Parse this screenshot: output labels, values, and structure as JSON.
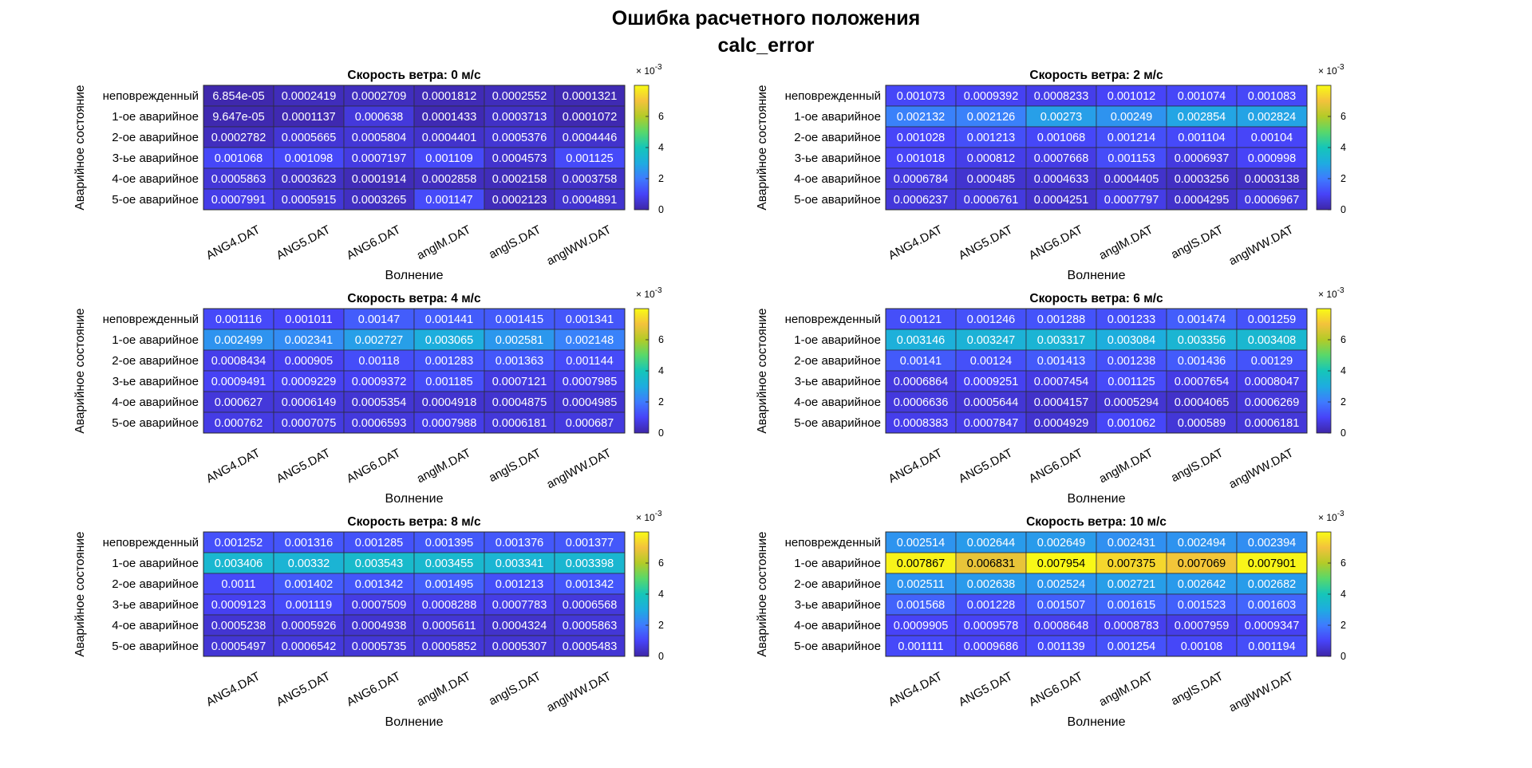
{
  "title_line1": "Ошибка расчетного положения",
  "title_line2": "calc_error",
  "colormap": [
    "#3e26a8",
    "#4743f8",
    "#3e7bfe",
    "#1eace0",
    "#15c6b9",
    "#58d86b",
    "#b3cb28",
    "#f3c23c",
    "#f9fb15"
  ],
  "chart_data": [
    {
      "type": "heatmap",
      "title": "Скорость ветра: 0 м/с",
      "xlabel": "Волнение",
      "ylabel": "Аварийное состояние",
      "x": [
        "ANG4.DAT",
        "ANG5.DAT",
        "ANG6.DAT",
        "anglM.DAT",
        "anglS.DAT",
        "anglWW.DAT"
      ],
      "y": [
        "неповрежденный",
        "1-ое аварийное",
        "2-ое аварийное",
        "3-ье аварийное",
        "4-ое аварийное",
        "5-ое аварийное"
      ],
      "labels": [
        [
          "6.854e-05",
          "0.0002419",
          "0.0002709",
          "0.0001812",
          "0.0002552",
          "0.0001321"
        ],
        [
          "9.647e-05",
          "0.0001137",
          "0.000638",
          "0.0001433",
          "0.0003713",
          "0.0001072"
        ],
        [
          "0.0002782",
          "0.0005665",
          "0.0005804",
          "0.0004401",
          "0.0005376",
          "0.0004446"
        ],
        [
          "0.001068",
          "0.001098",
          "0.0007197",
          "0.001109",
          "0.0004573",
          "0.001125"
        ],
        [
          "0.0005863",
          "0.0003623",
          "0.0001914",
          "0.0002858",
          "0.0002158",
          "0.0003758"
        ],
        [
          "0.0007991",
          "0.0005915",
          "0.0003265",
          "0.001147",
          "0.0002123",
          "0.0004891"
        ]
      ],
      "values": [
        [
          6.854e-05,
          0.0002419,
          0.0002709,
          0.0001812,
          0.0002552,
          0.0001321
        ],
        [
          9.647e-05,
          0.0001137,
          0.000638,
          0.0001433,
          0.0003713,
          0.0001072
        ],
        [
          0.0002782,
          0.0005665,
          0.0005804,
          0.0004401,
          0.0005376,
          0.0004446
        ],
        [
          0.001068,
          0.001098,
          0.0007197,
          0.001109,
          0.0004573,
          0.001125
        ],
        [
          0.0005863,
          0.0003623,
          0.0001914,
          0.0002858,
          0.0002158,
          0.0003758
        ],
        [
          0.0007991,
          0.0005915,
          0.0003265,
          0.001147,
          0.0002123,
          0.0004891
        ]
      ],
      "clim": [
        0,
        0.008
      ],
      "colorbar": {
        "ticks": [
          "0",
          "2",
          "4",
          "6"
        ],
        "exponent": "× 10^-3"
      }
    },
    {
      "type": "heatmap",
      "title": "Скорость ветра: 2 м/с",
      "xlabel": "Волнение",
      "ylabel": "Аварийное состояние",
      "x": [
        "ANG4.DAT",
        "ANG5.DAT",
        "ANG6.DAT",
        "anglM.DAT",
        "anglS.DAT",
        "anglWW.DAT"
      ],
      "y": [
        "неповрежденный",
        "1-ое аварийное",
        "2-ое аварийное",
        "3-ье аварийное",
        "4-ое аварийное",
        "5-ое аварийное"
      ],
      "labels": [
        [
          "0.001073",
          "0.0009392",
          "0.0008233",
          "0.001012",
          "0.001074",
          "0.001083"
        ],
        [
          "0.002132",
          "0.002126",
          "0.00273",
          "0.00249",
          "0.002854",
          "0.002824"
        ],
        [
          "0.001028",
          "0.001213",
          "0.001068",
          "0.001214",
          "0.001104",
          "0.00104"
        ],
        [
          "0.001018",
          "0.000812",
          "0.0007668",
          "0.001153",
          "0.0006937",
          "0.000998"
        ],
        [
          "0.0006784",
          "0.000485",
          "0.0004633",
          "0.0004405",
          "0.0003256",
          "0.0003138"
        ],
        [
          "0.0006237",
          "0.0006761",
          "0.0004251",
          "0.0007797",
          "0.0004295",
          "0.0006967"
        ]
      ],
      "values": [
        [
          0.001073,
          0.0009392,
          0.0008233,
          0.001012,
          0.001074,
          0.001083
        ],
        [
          0.002132,
          0.002126,
          0.00273,
          0.00249,
          0.002854,
          0.002824
        ],
        [
          0.001028,
          0.001213,
          0.001068,
          0.001214,
          0.001104,
          0.00104
        ],
        [
          0.001018,
          0.000812,
          0.0007668,
          0.001153,
          0.0006937,
          0.000998
        ],
        [
          0.0006784,
          0.000485,
          0.0004633,
          0.0004405,
          0.0003256,
          0.0003138
        ],
        [
          0.0006237,
          0.0006761,
          0.0004251,
          0.0007797,
          0.0004295,
          0.0006967
        ]
      ],
      "clim": [
        0,
        0.008
      ],
      "colorbar": {
        "ticks": [
          "0",
          "2",
          "4",
          "6"
        ],
        "exponent": "× 10^-3"
      }
    },
    {
      "type": "heatmap",
      "title": "Скорость ветра: 4 м/с",
      "xlabel": "Волнение",
      "ylabel": "Аварийное состояние",
      "x": [
        "ANG4.DAT",
        "ANG5.DAT",
        "ANG6.DAT",
        "anglM.DAT",
        "anglS.DAT",
        "anglWW.DAT"
      ],
      "y": [
        "неповрежденный",
        "1-ое аварийное",
        "2-ое аварийное",
        "3-ье аварийное",
        "4-ое аварийное",
        "5-ое аварийное"
      ],
      "labels": [
        [
          "0.001116",
          "0.001011",
          "0.00147",
          "0.001441",
          "0.001415",
          "0.001341"
        ],
        [
          "0.002499",
          "0.002341",
          "0.002727",
          "0.003065",
          "0.002581",
          "0.002148"
        ],
        [
          "0.0008434",
          "0.000905",
          "0.00118",
          "0.001283",
          "0.001363",
          "0.001144"
        ],
        [
          "0.0009491",
          "0.0009229",
          "0.0009372",
          "0.001185",
          "0.0007121",
          "0.0007985"
        ],
        [
          "0.000627",
          "0.0006149",
          "0.0005354",
          "0.0004918",
          "0.0004875",
          "0.0004985"
        ],
        [
          "0.000762",
          "0.0007075",
          "0.0006593",
          "0.0007988",
          "0.0006181",
          "0.000687"
        ]
      ],
      "values": [
        [
          0.001116,
          0.001011,
          0.00147,
          0.001441,
          0.001415,
          0.001341
        ],
        [
          0.002499,
          0.002341,
          0.002727,
          0.003065,
          0.002581,
          0.002148
        ],
        [
          0.0008434,
          0.000905,
          0.00118,
          0.001283,
          0.001363,
          0.001144
        ],
        [
          0.0009491,
          0.0009229,
          0.0009372,
          0.001185,
          0.0007121,
          0.0007985
        ],
        [
          0.000627,
          0.0006149,
          0.0005354,
          0.0004918,
          0.0004875,
          0.0004985
        ],
        [
          0.000762,
          0.0007075,
          0.0006593,
          0.0007988,
          0.0006181,
          0.000687
        ]
      ],
      "clim": [
        0,
        0.008
      ],
      "colorbar": {
        "ticks": [
          "0",
          "2",
          "4",
          "6"
        ],
        "exponent": "× 10^-3"
      }
    },
    {
      "type": "heatmap",
      "title": "Скорость ветра: 6 м/с",
      "xlabel": "Волнение",
      "ylabel": "Аварийное состояние",
      "x": [
        "ANG4.DAT",
        "ANG5.DAT",
        "ANG6.DAT",
        "anglM.DAT",
        "anglS.DAT",
        "anglWW.DAT"
      ],
      "y": [
        "неповрежденный",
        "1-ое аварийное",
        "2-ое аварийное",
        "3-ье аварийное",
        "4-ое аварийное",
        "5-ое аварийное"
      ],
      "labels": [
        [
          "0.00121",
          "0.001246",
          "0.001288",
          "0.001233",
          "0.001474",
          "0.001259"
        ],
        [
          "0.003146",
          "0.003247",
          "0.003317",
          "0.003084",
          "0.003356",
          "0.003408"
        ],
        [
          "0.00141",
          "0.00124",
          "0.001413",
          "0.001238",
          "0.001436",
          "0.00129"
        ],
        [
          "0.0006864",
          "0.0009251",
          "0.0007454",
          "0.001125",
          "0.0007654",
          "0.0008047"
        ],
        [
          "0.0006636",
          "0.0005644",
          "0.0004157",
          "0.0005294",
          "0.0004065",
          "0.0006269"
        ],
        [
          "0.0008383",
          "0.0007847",
          "0.0004929",
          "0.001062",
          "0.000589",
          "0.0006181"
        ]
      ],
      "values": [
        [
          0.00121,
          0.001246,
          0.001288,
          0.001233,
          0.001474,
          0.001259
        ],
        [
          0.003146,
          0.003247,
          0.003317,
          0.003084,
          0.003356,
          0.003408
        ],
        [
          0.00141,
          0.00124,
          0.001413,
          0.001238,
          0.001436,
          0.00129
        ],
        [
          0.0006864,
          0.0009251,
          0.0007454,
          0.001125,
          0.0007654,
          0.0008047
        ],
        [
          0.0006636,
          0.0005644,
          0.0004157,
          0.0005294,
          0.0004065,
          0.0006269
        ],
        [
          0.0008383,
          0.0007847,
          0.0004929,
          0.001062,
          0.000589,
          0.0006181
        ]
      ],
      "clim": [
        0,
        0.008
      ],
      "colorbar": {
        "ticks": [
          "0",
          "2",
          "4",
          "6"
        ],
        "exponent": "× 10^-3"
      }
    },
    {
      "type": "heatmap",
      "title": "Скорость ветра: 8 м/с",
      "xlabel": "Волнение",
      "ylabel": "Аварийное состояние",
      "x": [
        "ANG4.DAT",
        "ANG5.DAT",
        "ANG6.DAT",
        "anglM.DAT",
        "anglS.DAT",
        "anglWW.DAT"
      ],
      "y": [
        "неповрежденный",
        "1-ое аварийное",
        "2-ое аварийное",
        "3-ье аварийное",
        "4-ое аварийное",
        "5-ое аварийное"
      ],
      "labels": [
        [
          "0.001252",
          "0.001316",
          "0.001285",
          "0.001395",
          "0.001376",
          "0.001377"
        ],
        [
          "0.003406",
          "0.00332",
          "0.003543",
          "0.003455",
          "0.003341",
          "0.003398"
        ],
        [
          "0.0011",
          "0.001402",
          "0.001342",
          "0.001495",
          "0.001213",
          "0.001342"
        ],
        [
          "0.0009123",
          "0.001119",
          "0.0007509",
          "0.0008288",
          "0.0007783",
          "0.0006568"
        ],
        [
          "0.0005238",
          "0.0005926",
          "0.0004938",
          "0.0005611",
          "0.0004324",
          "0.0005863"
        ],
        [
          "0.0005497",
          "0.0006542",
          "0.0005735",
          "0.0005852",
          "0.0005307",
          "0.0005483"
        ]
      ],
      "values": [
        [
          0.001252,
          0.001316,
          0.001285,
          0.001395,
          0.001376,
          0.001377
        ],
        [
          0.003406,
          0.00332,
          0.003543,
          0.003455,
          0.003341,
          0.003398
        ],
        [
          0.0011,
          0.001402,
          0.001342,
          0.001495,
          0.001213,
          0.001342
        ],
        [
          0.0009123,
          0.001119,
          0.0007509,
          0.0008288,
          0.0007783,
          0.0006568
        ],
        [
          0.0005238,
          0.0005926,
          0.0004938,
          0.0005611,
          0.0004324,
          0.0005863
        ],
        [
          0.0005497,
          0.0006542,
          0.0005735,
          0.0005852,
          0.0005307,
          0.0005483
        ]
      ],
      "clim": [
        0,
        0.008
      ],
      "colorbar": {
        "ticks": [
          "0",
          "2",
          "4",
          "6"
        ],
        "exponent": "× 10^-3"
      }
    },
    {
      "type": "heatmap",
      "title": "Скорость ветра: 10 м/с",
      "xlabel": "Волнение",
      "ylabel": "Аварийное состояние",
      "x": [
        "ANG4.DAT",
        "ANG5.DAT",
        "ANG6.DAT",
        "anglM.DAT",
        "anglS.DAT",
        "anglWW.DAT"
      ],
      "y": [
        "неповрежденный",
        "1-ое аварийное",
        "2-ое аварийное",
        "3-ье аварийное",
        "4-ое аварийное",
        "5-ое аварийное"
      ],
      "labels": [
        [
          "0.002514",
          "0.002644",
          "0.002649",
          "0.002431",
          "0.002494",
          "0.002394"
        ],
        [
          "0.007867",
          "0.006831",
          "0.007954",
          "0.007375",
          "0.007069",
          "0.007901"
        ],
        [
          "0.002511",
          "0.002638",
          "0.002524",
          "0.002721",
          "0.002642",
          "0.002682"
        ],
        [
          "0.001568",
          "0.001228",
          "0.001507",
          "0.001615",
          "0.001523",
          "0.001603"
        ],
        [
          "0.0009905",
          "0.0009578",
          "0.0008648",
          "0.0008783",
          "0.0007959",
          "0.0009347"
        ],
        [
          "0.001111",
          "0.0009686",
          "0.001139",
          "0.001254",
          "0.00108",
          "0.001194"
        ]
      ],
      "values": [
        [
          0.002514,
          0.002644,
          0.002649,
          0.002431,
          0.002494,
          0.002394
        ],
        [
          0.007867,
          0.006831,
          0.007954,
          0.007375,
          0.007069,
          0.007901
        ],
        [
          0.002511,
          0.002638,
          0.002524,
          0.002721,
          0.002642,
          0.002682
        ],
        [
          0.001568,
          0.001228,
          0.001507,
          0.001615,
          0.001523,
          0.001603
        ],
        [
          0.0009905,
          0.0009578,
          0.0008648,
          0.0008783,
          0.0007959,
          0.0009347
        ],
        [
          0.001111,
          0.0009686,
          0.001139,
          0.001254,
          0.00108,
          0.001194
        ]
      ],
      "clim": [
        0,
        0.008
      ],
      "colorbar": {
        "ticks": [
          "0",
          "2",
          "4",
          "6"
        ],
        "exponent": "× 10^-3"
      }
    }
  ]
}
